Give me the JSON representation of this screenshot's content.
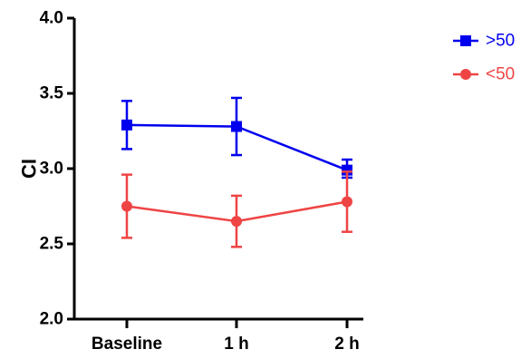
{
  "chart_data": {
    "type": "line",
    "title": "",
    "xlabel": "",
    "ylabel": "CI",
    "categories": [
      "Baseline",
      "1 h",
      "2 h"
    ],
    "ylim": [
      2.0,
      4.0
    ],
    "yticks": [
      "2.0",
      "2.5",
      "3.0",
      "3.5",
      "4.0"
    ],
    "grid": false,
    "legend_position": "top-right",
    "series": [
      {
        "name": ">50",
        "color": "#0000ee",
        "marker": "square",
        "values": [
          3.29,
          3.28,
          2.99
        ],
        "error_low": [
          3.13,
          3.09,
          2.94
        ],
        "error_high": [
          3.45,
          3.47,
          3.06
        ]
      },
      {
        "name": "<50",
        "color": "#ef4444",
        "marker": "circle",
        "values": [
          2.75,
          2.65,
          2.78
        ],
        "error_low": [
          2.54,
          2.48,
          2.58
        ],
        "error_high": [
          2.96,
          2.82,
          2.98
        ]
      }
    ]
  }
}
